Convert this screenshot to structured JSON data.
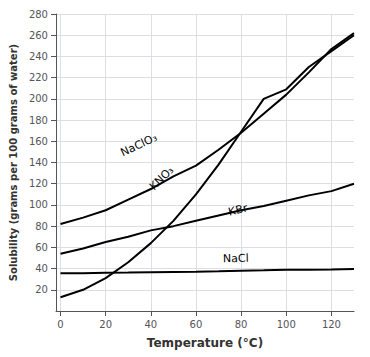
{
  "chart_data": {
    "type": "line",
    "title": "",
    "xlabel": "Temperature (°C)",
    "ylabel": "Solubility (grams per 100 grams of water)",
    "xlim": [
      -2,
      130
    ],
    "ylim": [
      0,
      280
    ],
    "xticks": [
      0,
      20,
      40,
      60,
      80,
      100,
      120
    ],
    "yticks": [
      20,
      40,
      60,
      80,
      100,
      120,
      140,
      160,
      180,
      200,
      220,
      240,
      260,
      280
    ],
    "grid": true,
    "x": [
      0,
      10,
      20,
      30,
      40,
      50,
      60,
      70,
      80,
      90,
      100,
      110,
      120,
      130
    ],
    "series": [
      {
        "color": "#000000",
        "values": [
          82,
          88,
          95,
          105,
          115,
          127,
          137,
          152,
          168,
          186,
          204,
          225,
          247,
          262
        ]
      },
      {
        "color": "#000000",
        "values": [
          13,
          20,
          31,
          46,
          64,
          85,
          110,
          138,
          169,
          200,
          209,
          230,
          245,
          260
        ]
      },
      {
        "color": "#000000",
        "values": [
          54,
          59,
          65,
          70,
          76,
          80,
          85,
          90,
          95,
          99,
          104,
          109,
          113,
          120
        ]
      },
      {
        "color": "#000000",
        "values": [
          35.5,
          35.7,
          36.0,
          36.2,
          36.5,
          36.8,
          37.1,
          37.5,
          38.0,
          38.3,
          38.8,
          39.0,
          39.2,
          39.5
        ]
      }
    ],
    "annotations": [
      {
        "text": "NaClO₃",
        "x": 28,
        "y": 144
      },
      {
        "text": "KNO₃",
        "x": 42,
        "y": 112
      },
      {
        "text": "KBr",
        "x": 75,
        "y": 88
      },
      {
        "text": "NaCl",
        "x": 72,
        "y": 44
      }
    ]
  }
}
